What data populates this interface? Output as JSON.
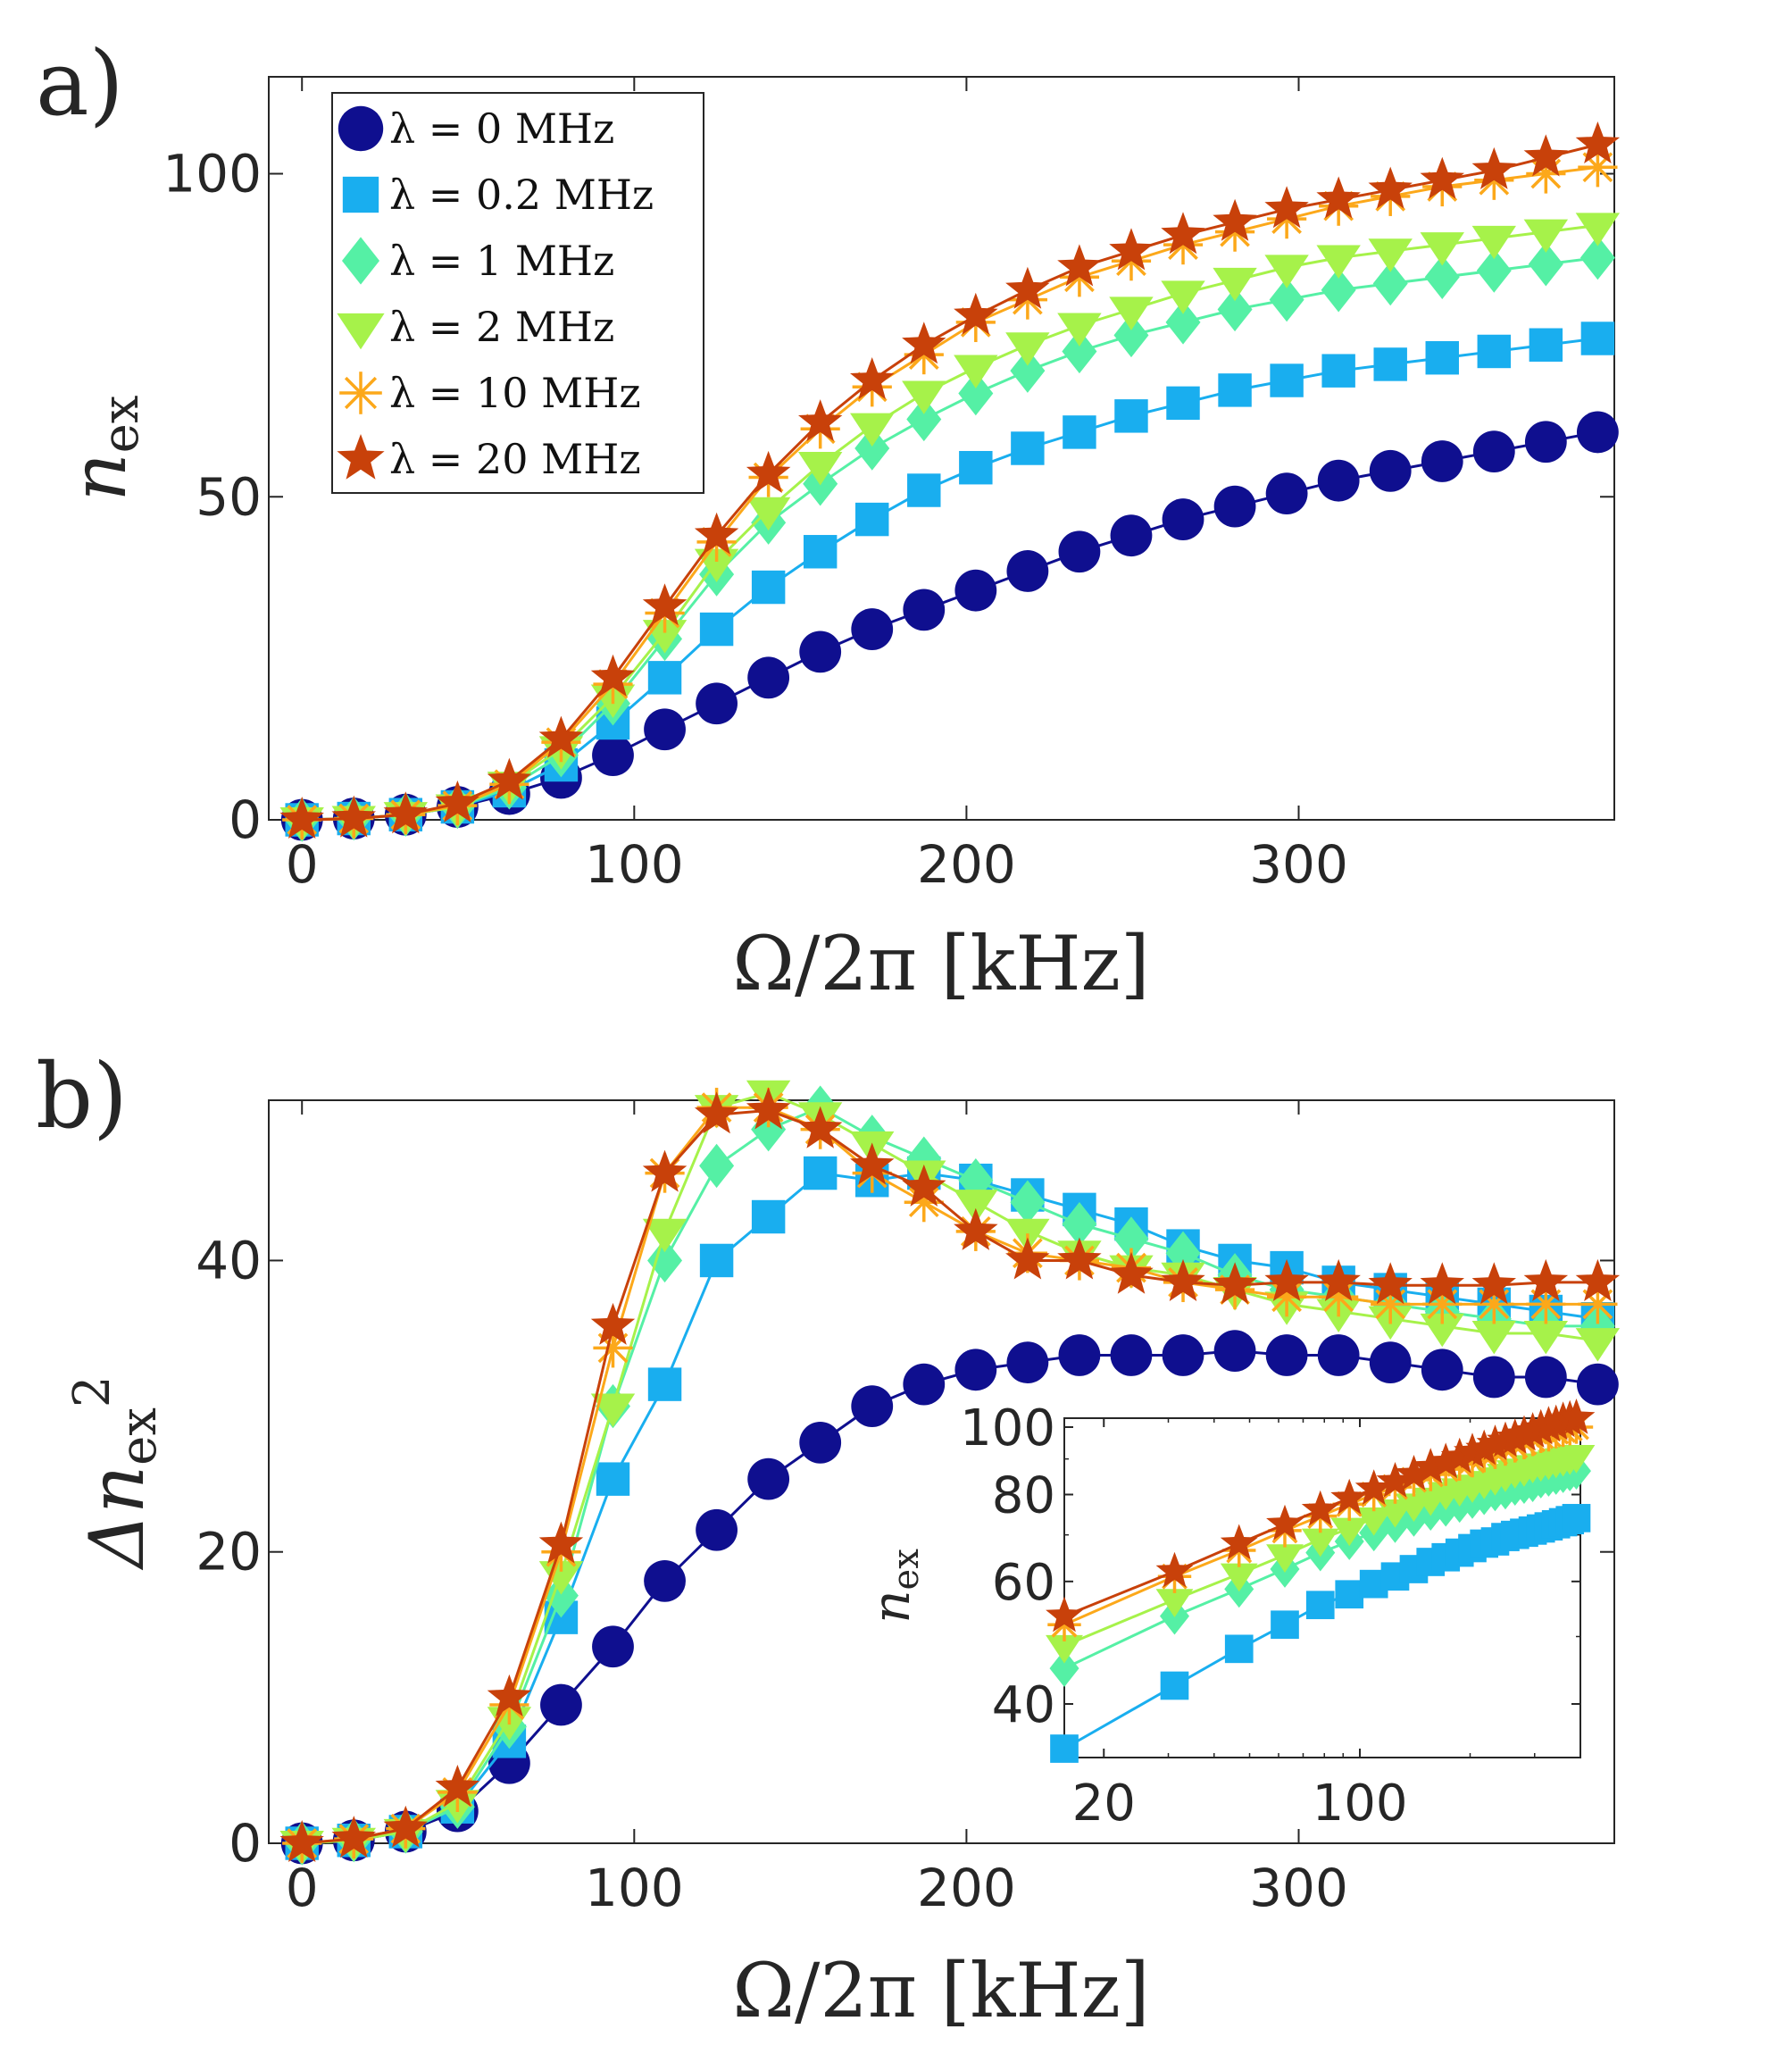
{
  "chart_data": [
    {
      "type": "line",
      "panel": "a)",
      "xlabel": "Ω/2π [kHz]",
      "ylabel_base": "n",
      "ylabel_sub": "ex",
      "xlim": [
        -10,
        395
      ],
      "ylim": [
        0,
        115
      ],
      "xticks": [
        0,
        100,
        200,
        300
      ],
      "yticks": [
        0,
        50,
        100
      ],
      "legend_position": "top-left",
      "x": [
        0,
        15.6,
        31.2,
        46.8,
        62.4,
        78,
        93.6,
        109.2,
        124.8,
        140.4,
        156,
        171.6,
        187.2,
        202.8,
        218.4,
        234,
        249.6,
        265.2,
        280.8,
        296.4,
        312,
        327.6,
        343.2,
        358.8,
        374.4,
        390
      ],
      "series": [
        {
          "name": "λ = 0 MHz",
          "color": "#0f0f8f",
          "marker": "circle",
          "values": [
            0,
            0.2,
            0.8,
            2,
            4,
            6.5,
            10,
            14,
            18,
            22,
            26,
            29.5,
            32.5,
            35.5,
            38.5,
            41.5,
            44,
            46.5,
            48.5,
            50.5,
            52.5,
            54,
            55.5,
            57,
            58.5,
            60
          ]
        },
        {
          "name": "λ = 0.2 MHz",
          "color": "#19aeef",
          "marker": "square",
          "values": [
            0,
            0.2,
            0.8,
            2,
            4.5,
            8.5,
            15,
            22,
            29.5,
            36,
            41.5,
            46.5,
            51,
            54.5,
            57.5,
            60,
            62.5,
            64.5,
            66.5,
            68,
            69.5,
            70.5,
            71.5,
            72.5,
            73.5,
            74.5
          ]
        },
        {
          "name": "λ = 1 MHz",
          "color": "#55f0a5",
          "marker": "diamond",
          "values": [
            0,
            0.2,
            0.8,
            2,
            5,
            10,
            18,
            28,
            38,
            46,
            52,
            57.5,
            62,
            66,
            69.5,
            72.5,
            75,
            77,
            79,
            80.5,
            82,
            83,
            84,
            85,
            86,
            87
          ]
        },
        {
          "name": "λ = 2 MHz",
          "color": "#a6f24a",
          "marker": "triangle-down",
          "values": [
            0,
            0.2,
            0.8,
            2,
            5.5,
            11,
            19,
            29,
            40,
            48,
            55,
            61,
            66,
            70,
            73.5,
            76.5,
            79,
            81.5,
            83.5,
            85.5,
            87,
            88,
            89,
            90,
            91,
            92
          ]
        },
        {
          "name": "λ = 10 MHz",
          "color": "#fca81a",
          "marker": "asterisk",
          "values": [
            0,
            0.2,
            0.8,
            2.2,
            5.5,
            12,
            21,
            32,
            43,
            53,
            60.5,
            67,
            72,
            77,
            80.5,
            84,
            86.5,
            89,
            91,
            93,
            95,
            96.5,
            98,
            99,
            100,
            101
          ]
        },
        {
          "name": "λ = 20 MHz",
          "color": "#c8410a",
          "marker": "star",
          "values": [
            0,
            0.2,
            0.8,
            2.5,
            6,
            12.5,
            22,
            33,
            44,
            53.5,
            61.5,
            68,
            73.5,
            78,
            82,
            85.5,
            88,
            90.5,
            92.5,
            94.5,
            96,
            97.5,
            99,
            100.5,
            102.5,
            104.5
          ]
        }
      ]
    },
    {
      "type": "line",
      "panel": "b)",
      "xlabel": "Ω/2π [kHz]",
      "ylabel_base": "Δn",
      "ylabel_sub": "ex",
      "ylabel_sup": "2",
      "xlim": [
        -10,
        395
      ],
      "ylim": [
        0,
        51
      ],
      "xticks": [
        0,
        100,
        200,
        300
      ],
      "yticks": [
        0,
        20,
        40
      ],
      "x": [
        0,
        15.6,
        31.2,
        46.8,
        62.4,
        78,
        93.6,
        109.2,
        124.8,
        140.4,
        156,
        171.6,
        187.2,
        202.8,
        218.4,
        234,
        249.6,
        265.2,
        280.8,
        296.4,
        312,
        327.6,
        343.2,
        358.8,
        374.4,
        390
      ],
      "series": [
        {
          "name": "λ = 0 MHz",
          "color": "#0f0f8f",
          "marker": "circle",
          "values": [
            0,
            0.2,
            0.8,
            2.2,
            5.5,
            9.5,
            13.5,
            18,
            21.5,
            25,
            27.5,
            30,
            31.5,
            32.5,
            33,
            33.5,
            33.5,
            33.5,
            33.8,
            33.5,
            33.5,
            33,
            32.5,
            32,
            32,
            31.5
          ]
        },
        {
          "name": "λ = 0.2 MHz",
          "color": "#19aeef",
          "marker": "square",
          "values": [
            0,
            0.2,
            0.8,
            2.5,
            7,
            15.5,
            25,
            31.5,
            40,
            43,
            46,
            45.5,
            46,
            45.5,
            44.5,
            43.5,
            42.5,
            41,
            40,
            39.5,
            38.5,
            38,
            37.5,
            37,
            36.5,
            36
          ]
        },
        {
          "name": "λ = 1 MHz",
          "color": "#55f0a5",
          "marker": "diamond",
          "values": [
            0,
            0.2,
            0.8,
            2.5,
            8,
            17,
            30,
            40,
            46.5,
            49,
            50.5,
            48.5,
            47,
            45.5,
            44,
            42.5,
            41.5,
            40.5,
            39,
            38,
            37.5,
            37,
            36.5,
            36,
            35.5,
            35.5
          ]
        },
        {
          "name": "λ = 2 MHz",
          "color": "#a6f24a",
          "marker": "triangle-down",
          "values": [
            0,
            0.2,
            0.8,
            2.8,
            8.5,
            18.5,
            30,
            42,
            50.5,
            51.5,
            50,
            48,
            46,
            44,
            42,
            40.5,
            39.5,
            39,
            38,
            37,
            36.5,
            36,
            35.5,
            35,
            35,
            34.5
          ]
        },
        {
          "name": "λ = 10 MHz",
          "color": "#fca81a",
          "marker": "asterisk",
          "values": [
            0,
            0.3,
            1,
            3.5,
            9.5,
            20,
            34,
            46,
            50.5,
            50.5,
            49,
            46,
            44,
            42,
            40.5,
            40,
            39.5,
            38.5,
            38,
            37.5,
            37.5,
            37,
            37,
            37,
            37,
            37
          ]
        },
        {
          "name": "λ = 20 MHz",
          "color": "#c8410a",
          "marker": "star",
          "values": [
            0,
            0.3,
            1,
            3.8,
            10,
            20.5,
            35.5,
            46,
            50,
            50.3,
            49,
            46.5,
            45,
            42,
            40,
            40,
            39,
            38.5,
            38.3,
            38.5,
            38.5,
            38.3,
            38.3,
            38.3,
            38.5,
            38.5
          ]
        }
      ]
    },
    {
      "type": "line",
      "panel": "inset",
      "xscale": "log",
      "yscale": "log",
      "ylabel_base": "n",
      "ylabel_sub": "ex",
      "xlim": [
        15.6,
        400
      ],
      "ylim": [
        33.5,
        103
      ],
      "xticks": [
        20,
        100
      ],
      "yticks": [
        40,
        60,
        80,
        100
      ],
      "x": [
        15.6,
        31.2,
        46.8,
        62.4,
        78,
        93.6,
        109.2,
        124.8,
        140.4,
        156,
        171.6,
        187.2,
        202.8,
        218.4,
        234,
        249.6,
        265.2,
        280.8,
        296.4,
        312,
        327.6,
        343.2,
        358.8,
        374.4,
        390
      ],
      "series": [
        {
          "name": "λ = 0.2 MHz",
          "color": "#19aeef",
          "marker": "square",
          "values": [
            34.5,
            42.5,
            48,
            52,
            55.5,
            57.5,
            59.5,
            61,
            62.5,
            64,
            65,
            66,
            67,
            68,
            68.5,
            69.5,
            70,
            70.5,
            71,
            71.5,
            72,
            72.5,
            73,
            73.5,
            74
          ]
        },
        {
          "name": "λ = 1 MHz",
          "color": "#55f0a5",
          "marker": "diamond",
          "values": [
            45,
            53.5,
            58.5,
            62.5,
            66,
            68.5,
            70.5,
            72.5,
            74,
            75.5,
            76.5,
            77.5,
            78.5,
            79.5,
            80.5,
            81,
            82,
            82.5,
            83,
            84,
            84.5,
            85,
            85.5,
            86,
            86.5
          ]
        },
        {
          "name": "λ = 2 MHz",
          "color": "#a6f24a",
          "marker": "triangle-down",
          "values": [
            48.5,
            56.5,
            61.5,
            65.5,
            69,
            71.5,
            74,
            76,
            77.5,
            79,
            80.5,
            81.5,
            82.5,
            83.5,
            84.5,
            85.5,
            86.5,
            87,
            88,
            88.5,
            89,
            89.5,
            90,
            90.5,
            91
          ]
        },
        {
          "name": "λ = 10 MHz",
          "color": "#fca81a",
          "marker": "asterisk",
          "values": [
            52,
            61,
            66.5,
            71,
            74.5,
            77.5,
            80,
            82,
            84,
            85.5,
            87,
            88.5,
            89.5,
            91,
            92,
            93,
            94,
            95,
            96,
            97,
            97.5,
            98.5,
            99,
            99.5,
            100
          ]
        },
        {
          "name": "λ = 20 MHz",
          "color": "#c8410a",
          "marker": "star",
          "values": [
            53.5,
            62,
            68,
            72.5,
            76,
            79,
            81.5,
            83.5,
            85.5,
            87.5,
            89,
            90.5,
            92,
            93,
            94.5,
            95.5,
            96.5,
            97.5,
            98.5,
            99.5,
            100.5,
            101,
            102,
            102.5,
            103
          ]
        }
      ]
    }
  ]
}
